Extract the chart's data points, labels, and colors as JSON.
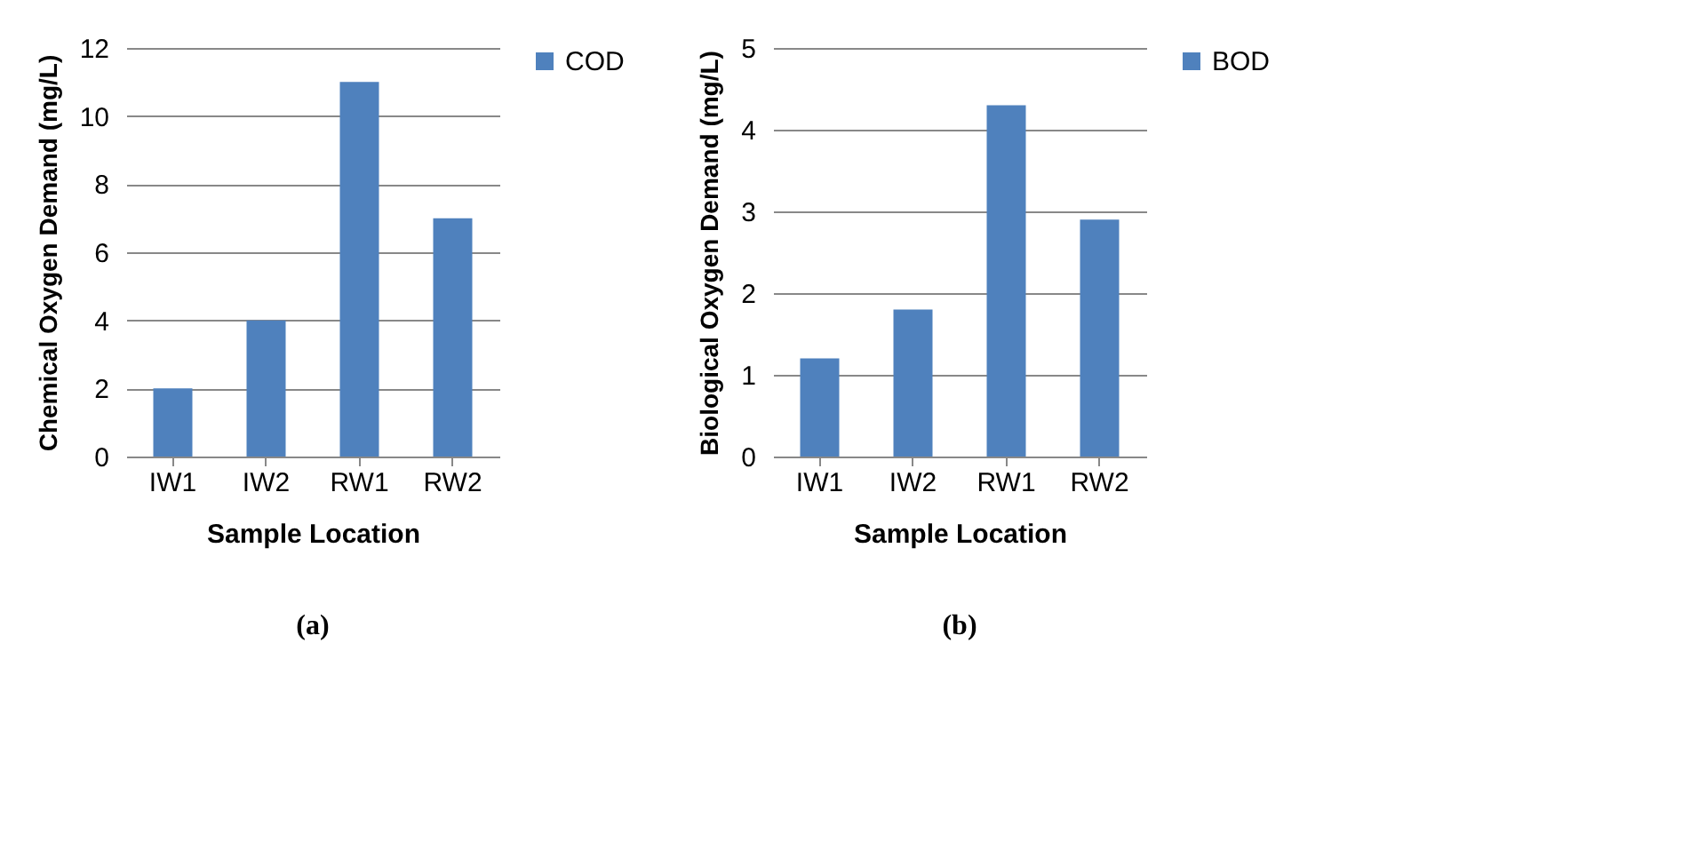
{
  "chart_data": [
    {
      "type": "bar",
      "categories": [
        "IW1",
        "IW2",
        "RW1",
        "RW2"
      ],
      "xlabel": "Sample Location",
      "ylabel": "Chemical Oxygen Demand (mg/L)",
      "series": [
        {
          "name": "COD",
          "color": "#4f81bd",
          "values": [
            2,
            4,
            11,
            7
          ]
        }
      ],
      "ylim": [
        0,
        12
      ],
      "yticks": [
        0,
        2,
        4,
        6,
        8,
        10,
        12
      ],
      "grid": "y",
      "legend": "right",
      "annotations": [
        "(a)"
      ]
    },
    {
      "type": "bar",
      "categories": [
        "IW1",
        "IW2",
        "RW1",
        "RW2"
      ],
      "xlabel": "Sample Location",
      "ylabel": "Biological Oxygen Demand (mg/L)",
      "series": [
        {
          "name": "BOD",
          "color": "#4f81bd",
          "values": [
            1.2,
            1.8,
            4.3,
            2.9
          ]
        }
      ],
      "ylim": [
        0,
        5
      ],
      "yticks": [
        0,
        1,
        2,
        3,
        4,
        5
      ],
      "grid": "y",
      "legend": "right",
      "annotations": [
        "(b)"
      ]
    }
  ]
}
